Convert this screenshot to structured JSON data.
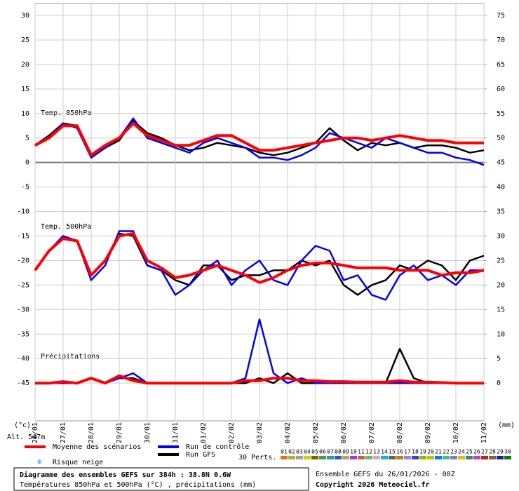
{
  "chart_data": {
    "type": "line",
    "annotations": [
      "Temp. 850hPa",
      "Temp. 500hPa",
      "Précipitations"
    ],
    "ylabel": "(°c)",
    "y2label": "(mm)",
    "altitude": "Alt. 547m",
    "x": [
      0,
      12,
      24,
      36,
      48,
      60,
      72,
      84,
      96,
      108,
      120,
      132,
      144,
      156,
      168,
      180,
      192,
      204,
      216,
      228,
      240,
      252,
      264,
      276,
      288,
      300,
      312,
      324,
      336,
      348,
      360,
      372,
      384
    ],
    "xlim": [
      0,
      384
    ],
    "xticks": [
      {
        "value": 0,
        "label": "26/01"
      },
      {
        "value": 24,
        "label": "27/01"
      },
      {
        "value": 48,
        "label": "28/01"
      },
      {
        "value": 72,
        "label": "29/01"
      },
      {
        "value": 96,
        "label": "30/01"
      },
      {
        "value": 120,
        "label": "31/01"
      },
      {
        "value": 144,
        "label": "01/02"
      },
      {
        "value": 168,
        "label": "02/02"
      },
      {
        "value": 192,
        "label": "03/02"
      },
      {
        "value": 216,
        "label": "04/02"
      },
      {
        "value": 240,
        "label": "05/02"
      },
      {
        "value": 264,
        "label": "06/02"
      },
      {
        "value": 288,
        "label": "07/02"
      },
      {
        "value": 312,
        "label": "08/02"
      },
      {
        "value": 336,
        "label": "09/02"
      },
      {
        "value": 360,
        "label": "10/02"
      },
      {
        "value": 384,
        "label": "11/02"
      }
    ],
    "ylim": [
      -52.7,
      30
    ],
    "yticks": [
      30,
      25,
      20,
      15,
      10,
      5,
      0,
      -5,
      -10,
      -15,
      -20,
      -25,
      -30,
      -35,
      -40,
      -45
    ],
    "y2lim": [
      -7.7,
      75
    ],
    "y2ticks": [
      75,
      70,
      65,
      60,
      55,
      50,
      45,
      40,
      35,
      30,
      25,
      20,
      15,
      10,
      5,
      0
    ],
    "grid": true,
    "series": [
      {
        "name": "Run GFS",
        "color": "#000000",
        "values_850": [
          3.5,
          5.5,
          8,
          7.5,
          1,
          3,
          4.5,
          8.5,
          6,
          5,
          3.5,
          2.5,
          3,
          4,
          3.5,
          3,
          2,
          1.5,
          2,
          3,
          4,
          7,
          4.5,
          2.5,
          4,
          3.5,
          4,
          3,
          3.5,
          3.5,
          3,
          2,
          2.5
        ],
        "values_500": [
          -22,
          -18,
          -15,
          -16,
          -23,
          -20,
          -14.5,
          -15,
          -21,
          -22,
          -24,
          -25,
          -21,
          -21,
          -24,
          -23,
          -23,
          -22,
          -22,
          -20,
          -21,
          -20,
          -25,
          -27,
          -25,
          -24,
          -21,
          -22,
          -20,
          -21,
          -24,
          -20,
          -19
        ],
        "values_precip": [
          0,
          0,
          0,
          0,
          1,
          0,
          1,
          1,
          0,
          0,
          0,
          0,
          0,
          0,
          0,
          0,
          1,
          0,
          2,
          0,
          0,
          0,
          0,
          0,
          0,
          0,
          7,
          1,
          0,
          0,
          0,
          0,
          0
        ]
      },
      {
        "name": "Run de contrôle",
        "color": "#0000ff",
        "values_850": [
          3.5,
          5,
          8,
          7,
          1,
          3,
          5,
          9,
          5,
          4,
          3,
          2,
          4,
          5,
          4,
          3,
          1,
          1,
          0.5,
          1.5,
          3,
          6,
          5,
          4,
          3,
          5,
          4,
          3,
          2,
          2,
          1,
          0.5,
          -0.5
        ],
        "values_500": [
          -22,
          -18,
          -15,
          -16,
          -24,
          -21,
          -14,
          -14,
          -21,
          -22,
          -27,
          -25,
          -22,
          -20,
          -25,
          -22,
          -20,
          -24,
          -25,
          -20,
          -17,
          -18,
          -24,
          -23,
          -27,
          -28,
          -23,
          -21,
          -24,
          -23,
          -25,
          -22,
          -22
        ],
        "values_precip": [
          0,
          0,
          0,
          0,
          1,
          0,
          1,
          2,
          0,
          0,
          0,
          0,
          0,
          0,
          0,
          1,
          13,
          2,
          0,
          1,
          0,
          0,
          0,
          0,
          0,
          0,
          0,
          0,
          0,
          0,
          0,
          0,
          0
        ]
      },
      {
        "name": "Moyenne des scénarios",
        "color": "#ff0000",
        "values_850": [
          3.5,
          5,
          7.5,
          7.5,
          1.5,
          3.5,
          5,
          8,
          5.5,
          4.5,
          3.5,
          3.5,
          4.5,
          5.5,
          5.5,
          4,
          2.5,
          2.5,
          3,
          3.5,
          4,
          4.5,
          5,
          5,
          4.5,
          5,
          5.5,
          5,
          4.5,
          4.5,
          4,
          4,
          4
        ],
        "values_500": [
          -22,
          -18,
          -15.5,
          -16,
          -23,
          -20,
          -15,
          -14.5,
          -20,
          -21.5,
          -23.5,
          -23,
          -22,
          -21,
          -22,
          -23,
          -24.5,
          -23.5,
          -22,
          -21,
          -20.5,
          -20.5,
          -21,
          -21.5,
          -21.5,
          -21.5,
          -22,
          -22,
          -22,
          -23,
          -22.5,
          -22.5,
          -22
        ],
        "values_precip": [
          0,
          0,
          0.3,
          0,
          1,
          0,
          1.5,
          0.5,
          0,
          0,
          0,
          0,
          0,
          0,
          0,
          0.5,
          0.5,
          1,
          1,
          0.5,
          0.5,
          0.3,
          0.3,
          0.2,
          0.2,
          0.2,
          0.5,
          0.2,
          0.2,
          0.1,
          0,
          0,
          0
        ]
      }
    ],
    "snow_risk": "Risque neige",
    "perturbations_label": "30 Perts.",
    "perturbations": [
      "01",
      "02",
      "03",
      "04",
      "05",
      "06",
      "07",
      "08",
      "09",
      "10",
      "11",
      "12",
      "13",
      "14",
      "15",
      "16",
      "17",
      "18",
      "19",
      "20",
      "21",
      "22",
      "23",
      "24",
      "25",
      "26",
      "27",
      "28",
      "29",
      "30"
    ],
    "perturbation_colors": [
      "#e07020",
      "#b0b030",
      "#a0a0a0",
      "#d0d000",
      "#806000",
      "#40a040",
      "#20a0a0",
      "#2060c0",
      "#c0a060",
      "#a040c0",
      "#d06040",
      "#60c060",
      "#e0a0e0",
      "#00c0c0",
      "#606060",
      "#c08000",
      "#a080e0",
      "#4040c0",
      "#80c000",
      "#c0c000",
      "#0080ff",
      "#40c080",
      "#8080c0",
      "#e0c000",
      "#408080",
      "#c040c0",
      "#c02020",
      "#806040",
      "#2020a0",
      "#008000"
    ]
  },
  "footer": {
    "title": "Diagramme des ensembles GEFS sur 384h : 38.8N 0.6W",
    "subtitle": "Températures 850hPa et 500hPa (°C) , précipitations (mm)",
    "run": "Ensemble GEFS du 26/01/2026 - 00Z",
    "copyright": "Copyright 2026 Meteociel.fr"
  }
}
